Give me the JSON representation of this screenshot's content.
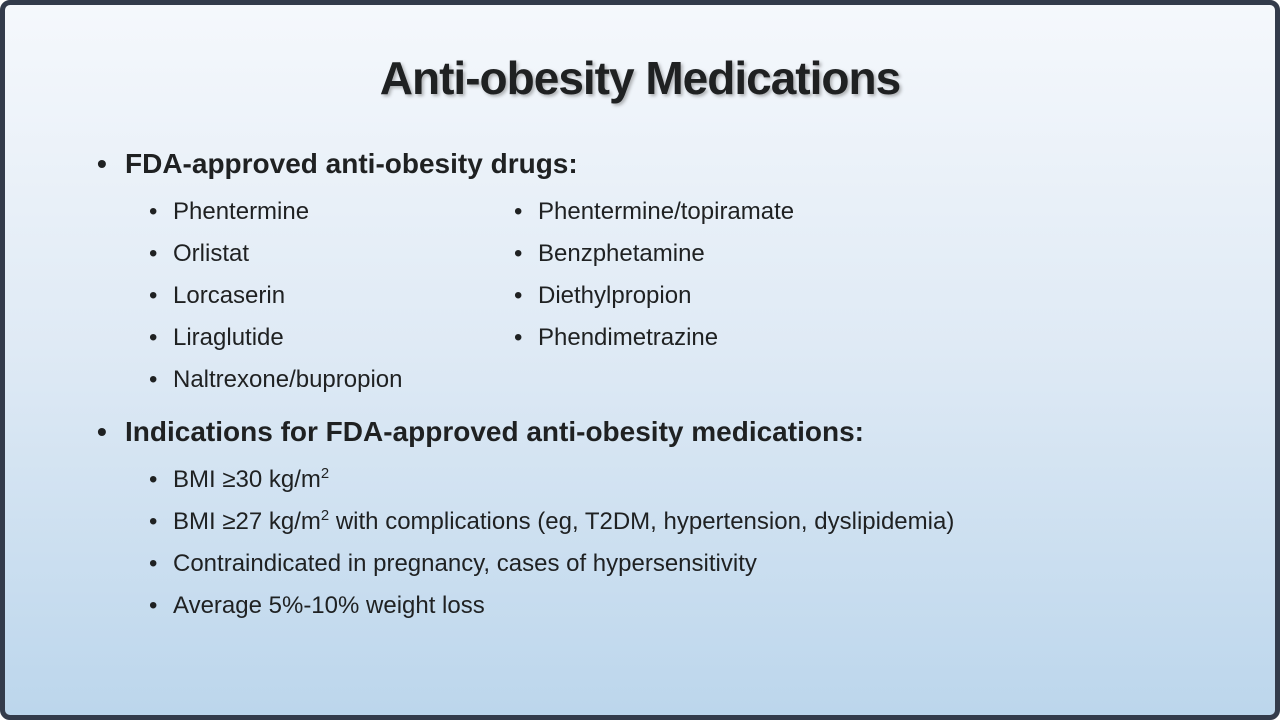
{
  "slide": {
    "title": "Anti-obesity Medications",
    "bullet_char": "•",
    "section1": {
      "heading": "FDA-approved anti-obesity drugs:",
      "left_items": [
        "Phentermine",
        "Orlistat",
        "Lorcaserin",
        "Liraglutide",
        "Naltrexone/bupropion"
      ],
      "right_items": [
        "Phentermine/topiramate",
        "Benzphetamine",
        "Diethylpropion",
        "Phendimetrazine"
      ]
    },
    "section2": {
      "heading": "Indications for FDA-approved anti-obesity medications:",
      "items": [
        {
          "pre": "BMI ≥30 kg/m",
          "sup": "2",
          "post": ""
        },
        {
          "pre": "BMI ≥27 kg/m",
          "sup": "2",
          "post": " with complications (eg, T2DM, hypertension, dyslipidemia)"
        },
        {
          "pre": "Contraindicated in pregnancy, cases of hypersensitivity"
        },
        {
          "pre": "Average 5%-10% weight loss"
        }
      ]
    },
    "colors": {
      "border": "#333b4b",
      "bg_top": "#f5f8fc",
      "bg_bottom": "#bcd6ec",
      "text": "#1f2122"
    }
  }
}
